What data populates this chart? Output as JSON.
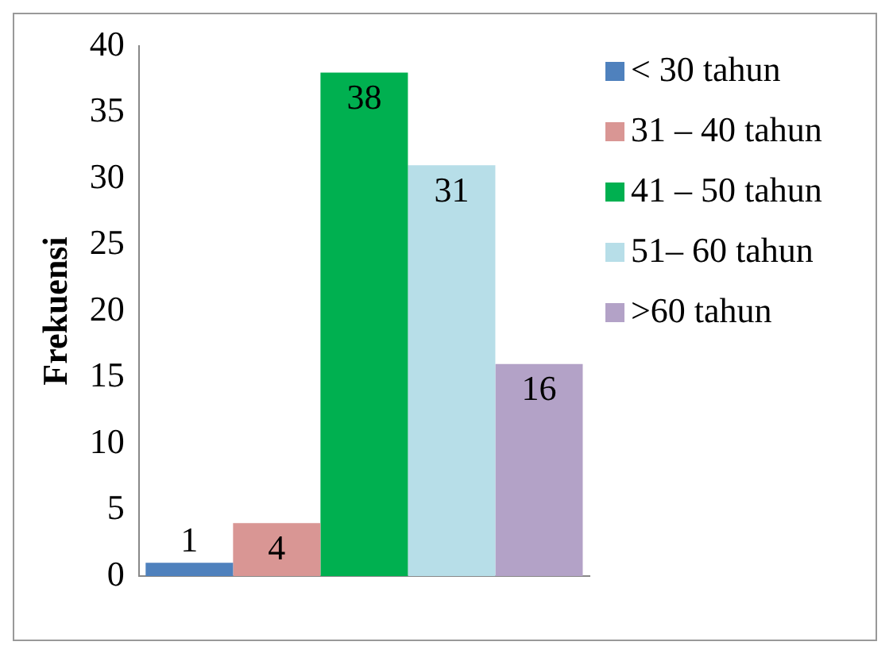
{
  "chart_data": {
    "type": "bar",
    "ylabel": "Frekuensi",
    "categories": [
      null
    ],
    "series": [
      {
        "name": "< 30 tahun",
        "color": "#4f81bd",
        "values": [
          1
        ]
      },
      {
        "name": "31 – 40 tahun",
        "color": "#d99694",
        "values": [
          4
        ]
      },
      {
        "name": "41 – 50 tahun",
        "color": "#00b050",
        "values": [
          38
        ]
      },
      {
        "name": "51– 60 tahun",
        "color": "#b7dee8",
        "values": [
          31
        ]
      },
      {
        "name": ">60 tahun",
        "color": "#b3a2c7",
        "values": [
          16
        ]
      }
    ],
    "ylim": [
      0,
      40
    ],
    "yticks": [
      0,
      5,
      10,
      15,
      20,
      25,
      30,
      35,
      40
    ],
    "grid": false,
    "legend": "right",
    "data_labels": true
  }
}
